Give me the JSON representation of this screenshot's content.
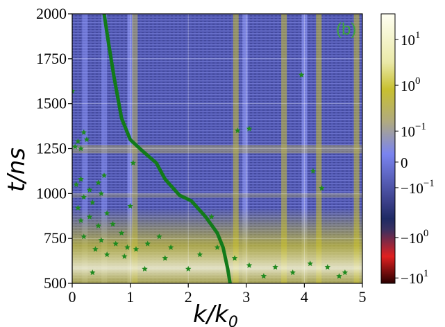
{
  "chart_data": {
    "type": "heatmap",
    "panel_label": "(b)",
    "xlabel": "k/k",
    "xlabel_sub": "0",
    "ylabel": "t/ns",
    "xlim": [
      0,
      5
    ],
    "ylim": [
      500,
      2000
    ],
    "x_ticks": [
      0,
      1,
      2,
      3,
      4,
      5
    ],
    "y_ticks": [
      500,
      750,
      1000,
      1250,
      1500,
      1750,
      2000
    ],
    "grid": true,
    "colorbar": {
      "scale": "symlog",
      "tick_labels": [
        {
          "base": "10",
          "exp": "1",
          "sign": ""
        },
        {
          "base": "10",
          "exp": "0",
          "sign": ""
        },
        {
          "base": "10",
          "exp": "−1",
          "sign": ""
        },
        {
          "base": "0",
          "exp": "",
          "sign": ""
        },
        {
          "base": "10",
          "exp": "−1",
          "sign": "−"
        },
        {
          "base": "10",
          "exp": "0",
          "sign": "−"
        },
        {
          "base": "10",
          "exp": "1",
          "sign": "−"
        }
      ],
      "colors": [
        "#fffff2",
        "#c8c030",
        "#b0aa80",
        "#7a84f0",
        "#3a3e88",
        "#1e2a64",
        "#e02020",
        "#2a0000"
      ]
    },
    "curve": {
      "color": "#127a1a",
      "points": [
        [
          0.55,
          2000
        ],
        [
          0.62,
          1850
        ],
        [
          0.72,
          1650
        ],
        [
          0.85,
          1420
        ],
        [
          1.0,
          1300
        ],
        [
          1.2,
          1240
        ],
        [
          1.45,
          1170
        ],
        [
          1.6,
          1080
        ],
        [
          1.85,
          990
        ],
        [
          2.05,
          960
        ],
        [
          2.3,
          870
        ],
        [
          2.5,
          780
        ],
        [
          2.6,
          700
        ],
        [
          2.68,
          580
        ],
        [
          2.72,
          500
        ]
      ]
    },
    "stars": {
      "color": "#1f8a1f",
      "points": [
        [
          0.05,
          1260
        ],
        [
          0.1,
          1290
        ],
        [
          0.15,
          1250
        ],
        [
          0.2,
          1340
        ],
        [
          0.25,
          1300
        ],
        [
          0.07,
          1050
        ],
        [
          0.15,
          1080
        ],
        [
          0.3,
          1020
        ],
        [
          0.45,
          1060
        ],
        [
          0.55,
          1100
        ],
        [
          0.5,
          1000
        ],
        [
          0.2,
          980
        ],
        [
          0.35,
          950
        ],
        [
          0.1,
          920
        ],
        [
          0.6,
          890
        ],
        [
          0.15,
          850
        ],
        [
          0.3,
          870
        ],
        [
          0.45,
          820
        ],
        [
          0.7,
          830
        ],
        [
          0.85,
          780
        ],
        [
          0.2,
          760
        ],
        [
          0.5,
          740
        ],
        [
          0.75,
          720
        ],
        [
          0.95,
          700
        ],
        [
          0.4,
          690
        ],
        [
          0.6,
          660
        ],
        [
          0.9,
          650
        ],
        [
          1.1,
          690
        ],
        [
          1.3,
          720
        ],
        [
          1.5,
          760
        ],
        [
          1.7,
          700
        ],
        [
          2.2,
          660
        ],
        [
          2.5,
          700
        ],
        [
          2.8,
          640
        ],
        [
          3.05,
          600
        ],
        [
          3.5,
          590
        ],
        [
          3.8,
          560
        ],
        [
          4.1,
          610
        ],
        [
          4.4,
          590
        ],
        [
          4.7,
          560
        ],
        [
          1.05,
          1170
        ],
        [
          1.0,
          930
        ],
        [
          2.85,
          1350
        ],
        [
          3.05,
          1360
        ],
        [
          4.15,
          1125
        ],
        [
          4.3,
          1030
        ],
        [
          3.95,
          1660
        ],
        [
          2.4,
          870
        ],
        [
          0.0,
          1570
        ],
        [
          4.6,
          540
        ],
        [
          2.0,
          580
        ],
        [
          1.6,
          640
        ],
        [
          3.3,
          540
        ],
        [
          0.35,
          560
        ],
        [
          1.25,
          580
        ]
      ]
    }
  }
}
